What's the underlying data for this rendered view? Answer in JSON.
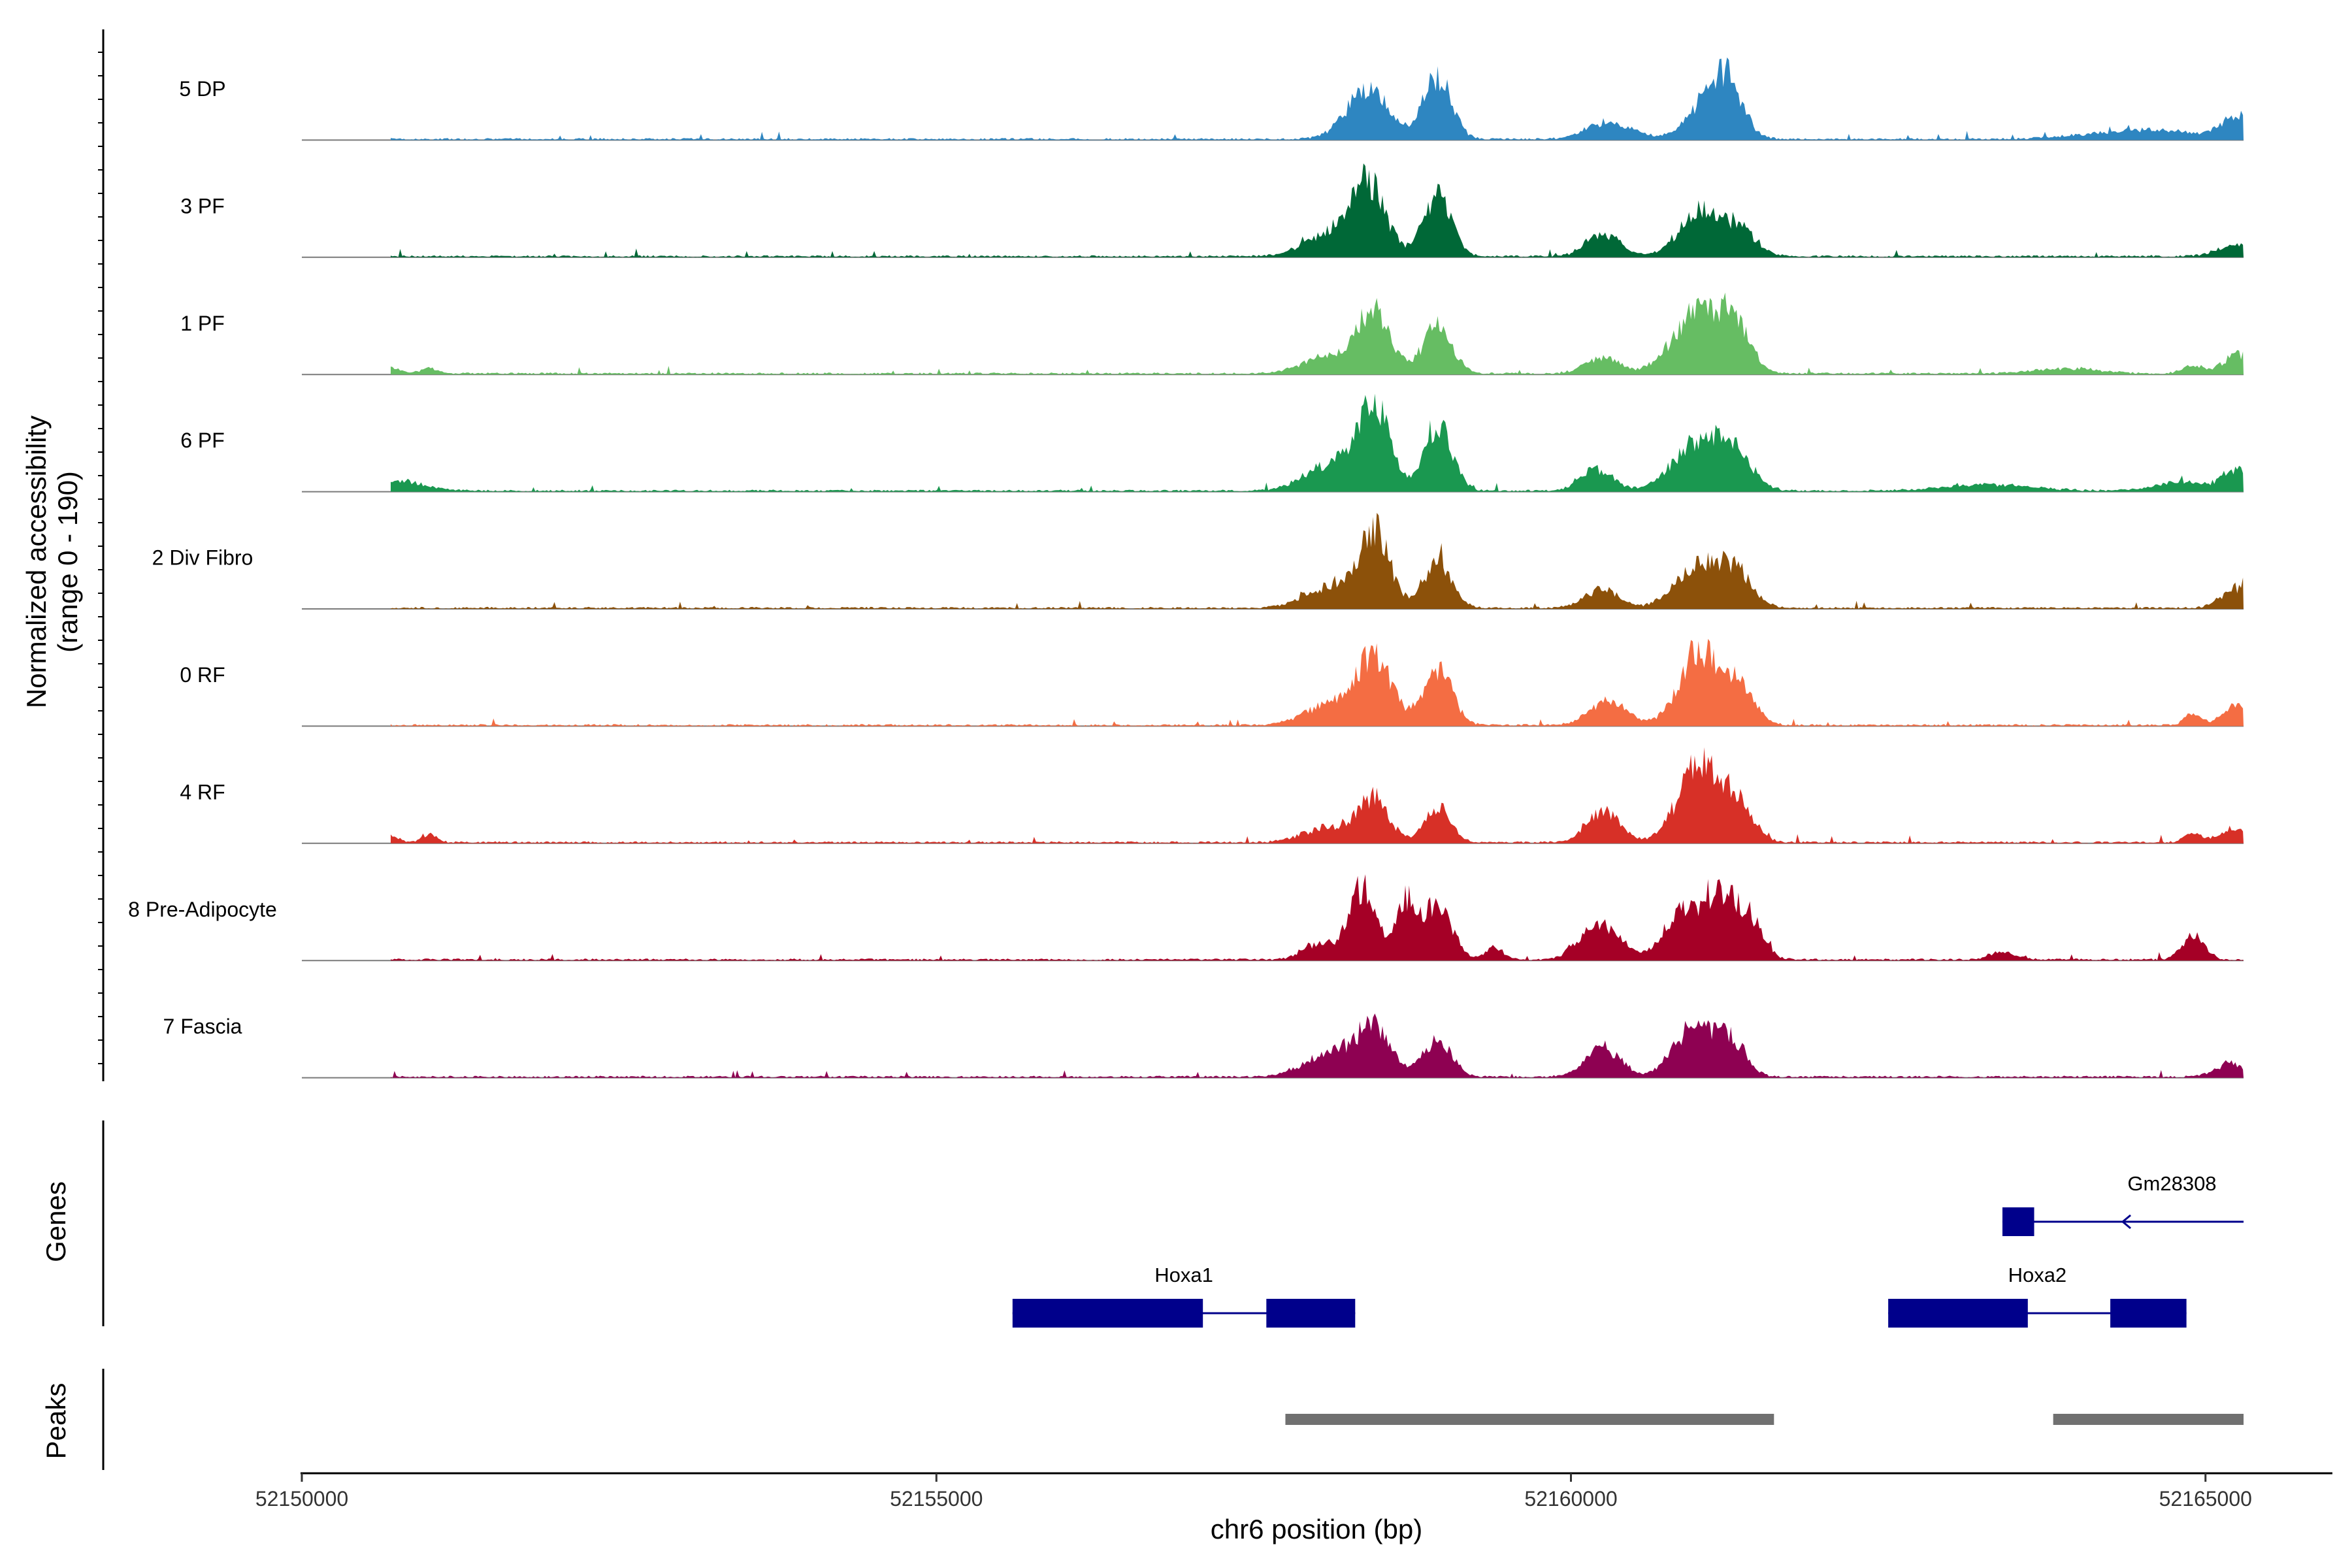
{
  "chart_data": {
    "type": "area",
    "title": "",
    "ylabel": "Normalized accessibility",
    "ylabel_range": "(range 0 - 190)",
    "ylim": [
      0,
      190
    ],
    "xlabel": "chr6 position (bp)",
    "xlim": [
      52150000,
      52166000
    ],
    "x_ticks": [
      52150000,
      52155000,
      52160000,
      52165000
    ],
    "x_tick_labels": [
      "52150000",
      "52155000",
      "52160000",
      "52165000"
    ],
    "coverage_end": 52165300,
    "tracks": [
      {
        "name": "5 DP",
        "color": "#2E86C1",
        "peaks": [
          [
            52158400,
            95,
            170
          ],
          [
            52158950,
            120,
            110
          ],
          [
            52160300,
            35,
            170
          ],
          [
            52161100,
            80,
            170
          ],
          [
            52161250,
            70,
            110
          ],
          [
            52164500,
            18,
            400
          ],
          [
            52165250,
            40,
            120
          ]
        ]
      },
      {
        "name": "3 PF",
        "color": "#006837",
        "peaks": [
          [
            52158100,
            40,
            200
          ],
          [
            52158400,
            135,
            140
          ],
          [
            52158950,
            115,
            110
          ],
          [
            52160250,
            45,
            130
          ],
          [
            52161000,
            85,
            150
          ],
          [
            52161300,
            55,
            140
          ],
          [
            52165250,
            22,
            150
          ]
        ]
      },
      {
        "name": "1 PF",
        "color": "#66BD63",
        "peaks": [
          [
            52150700,
            12,
            70
          ],
          [
            52151000,
            10,
            70
          ],
          [
            52158100,
            35,
            200
          ],
          [
            52158450,
            115,
            130
          ],
          [
            52158950,
            95,
            110
          ],
          [
            52160250,
            30,
            140
          ],
          [
            52161000,
            120,
            190
          ],
          [
            52161300,
            80,
            120
          ],
          [
            52163900,
            10,
            250
          ],
          [
            52164900,
            15,
            80
          ],
          [
            52165250,
            38,
            110
          ]
        ]
      },
      {
        "name": "6 PF",
        "color": "#1A9850",
        "peaks": [
          [
            52150800,
            18,
            180
          ],
          [
            52158100,
            50,
            200
          ],
          [
            52158450,
            155,
            130
          ],
          [
            52158950,
            130,
            110
          ],
          [
            52160200,
            40,
            130
          ],
          [
            52161000,
            95,
            190
          ],
          [
            52161300,
            60,
            140
          ],
          [
            52163300,
            12,
            350
          ],
          [
            52164800,
            18,
            200
          ],
          [
            52165250,
            42,
            110
          ]
        ]
      },
      {
        "name": "2 Div Fibro",
        "color": "#8C510A",
        "peaks": [
          [
            52158100,
            40,
            200
          ],
          [
            52158450,
            145,
            120
          ],
          [
            52158950,
            95,
            110
          ],
          [
            52160250,
            35,
            140
          ],
          [
            52161000,
            85,
            170
          ],
          [
            52161300,
            65,
            130
          ],
          [
            52165250,
            38,
            120
          ]
        ]
      },
      {
        "name": "0 RF",
        "color": "#F46D43",
        "peaks": [
          [
            52158100,
            40,
            200
          ],
          [
            52158450,
            125,
            140
          ],
          [
            52158950,
            115,
            110
          ],
          [
            52160300,
            45,
            150
          ],
          [
            52161000,
            140,
            150
          ],
          [
            52161300,
            80,
            130
          ],
          [
            52164900,
            22,
            60
          ],
          [
            52165250,
            38,
            120
          ]
        ]
      },
      {
        "name": "4 RF",
        "color": "#D73027",
        "peaks": [
          [
            52150700,
            12,
            60
          ],
          [
            52151000,
            15,
            60
          ],
          [
            52158100,
            30,
            200
          ],
          [
            52158450,
            80,
            120
          ],
          [
            52158950,
            70,
            100
          ],
          [
            52160250,
            60,
            130
          ],
          [
            52161000,
            145,
            160
          ],
          [
            52161300,
            75,
            130
          ],
          [
            52164900,
            18,
            70
          ],
          [
            52165250,
            30,
            120
          ]
        ]
      },
      {
        "name": "8 Pre-Adipocyte",
        "color": "#A50026",
        "peaks": [
          [
            52158000,
            30,
            120
          ],
          [
            52158350,
            140,
            110
          ],
          [
            52158700,
            110,
            80
          ],
          [
            52158950,
            110,
            110
          ],
          [
            52159400,
            25,
            70
          ],
          [
            52160150,
            55,
            120
          ],
          [
            52160350,
            40,
            110
          ],
          [
            52160850,
            80,
            130
          ],
          [
            52161150,
            120,
            140
          ],
          [
            52161400,
            70,
            110
          ],
          [
            52163400,
            15,
            100
          ],
          [
            52164900,
            45,
            90
          ]
        ]
      },
      {
        "name": "7 Fascia",
        "color": "#8E0152",
        "peaks": [
          [
            52158100,
            45,
            200
          ],
          [
            52158450,
            90,
            140
          ],
          [
            52158950,
            70,
            110
          ],
          [
            52160250,
            55,
            140
          ],
          [
            52160950,
            90,
            150
          ],
          [
            52161250,
            75,
            120
          ],
          [
            52165200,
            25,
            120
          ]
        ]
      }
    ],
    "genes": [
      {
        "name": "Hoxa1",
        "start": 52155600,
        "end": 52158300,
        "strand": "+",
        "exons": [
          [
            52155600,
            52157100
          ],
          [
            52157600,
            52158300
          ]
        ]
      },
      {
        "name": "Hoxa2",
        "start": 52162500,
        "end": 52164850,
        "strand": "+",
        "exons": [
          [
            52162500,
            52163600
          ],
          [
            52164250,
            52164850
          ]
        ]
      },
      {
        "name": "Gm28308",
        "start": 52163400,
        "end": 52165300,
        "strand": "-",
        "exons": [
          [
            52163400,
            52163650
          ]
        ]
      }
    ],
    "peaks": [
      {
        "start": 52157750,
        "end": 52161600
      },
      {
        "start": 52163800,
        "end": 52165300
      }
    ]
  },
  "panels": {
    "genes_label": "Genes",
    "peaks_label": "Peaks"
  },
  "colors": {
    "gene": "#00008B",
    "peak": "#707070",
    "baseline": "#7a7a7a"
  }
}
